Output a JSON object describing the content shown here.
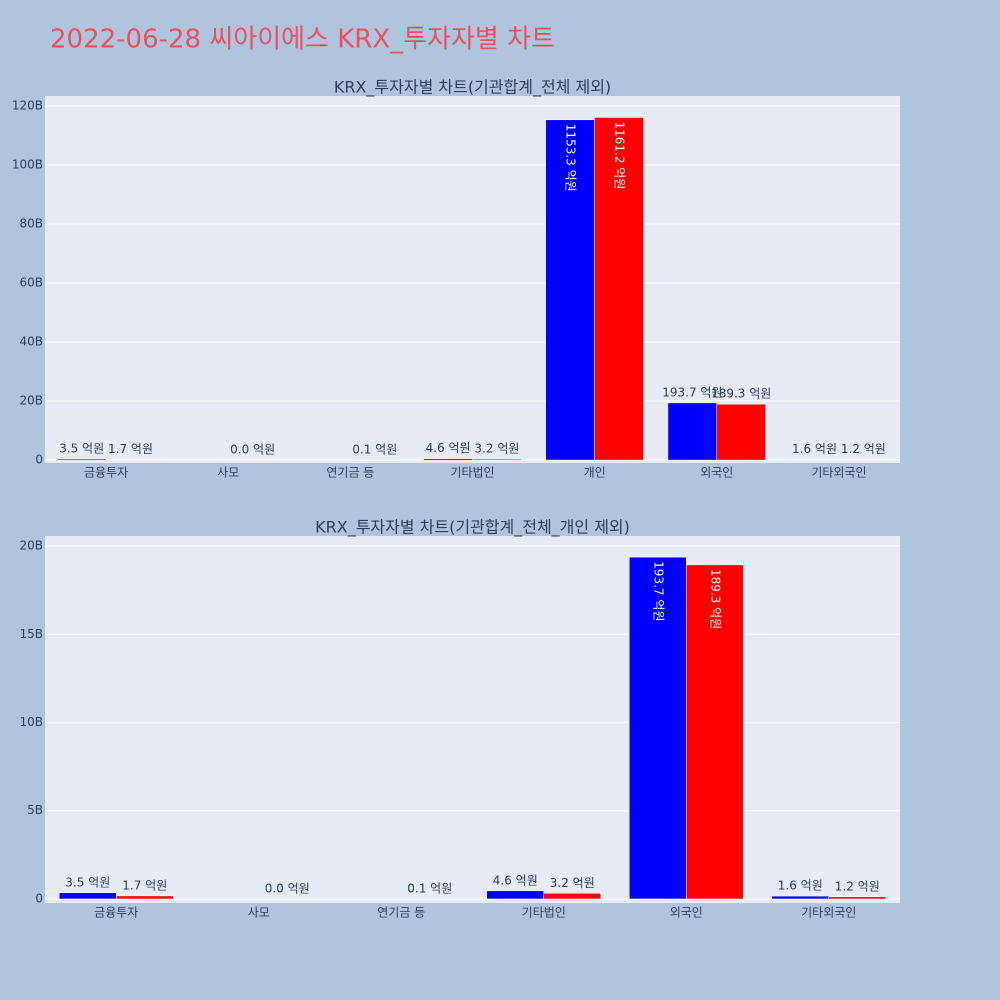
{
  "title": "2022-06-28 씨아이에스 KRX_투자자별 차트",
  "chart_data": [
    {
      "type": "bar",
      "title": "KRX_투자자별 차트(기관합계_전체 제외)",
      "categories": [
        "금융투자",
        "사모",
        "연기금 등",
        "기타법인",
        "개인",
        "외국인",
        "기타외국인"
      ],
      "series": [
        {
          "color": "#0000ff",
          "values": [
            350000000,
            null,
            null,
            460000000,
            115330000000,
            19370000000,
            160000000
          ],
          "value_labels": [
            "3.5 억원",
            null,
            null,
            "4.6 억원",
            "1153.3 억원",
            "193.7 억원",
            "1.6 억원"
          ]
        },
        {
          "color": "#ff0000",
          "values": [
            170000000,
            0,
            10000000,
            320000000,
            116120000000,
            18930000000,
            120000000
          ],
          "value_labels": [
            "1.7 억원",
            "0.0 억원",
            "0.1 억원",
            "3.2 억원",
            "1161.2 억원",
            "189.3 억원",
            "1.2 억원"
          ]
        }
      ],
      "ylim": [
        -1000000000,
        123400000000
      ],
      "yticks": [
        0,
        {
          "value": 20000000000,
          "label": "20B"
        },
        {
          "value": 40000000000,
          "label": "40B"
        },
        {
          "value": 60000000000,
          "label": "60B"
        },
        {
          "value": 80000000000,
          "label": "80B"
        },
        {
          "value": 100000000000,
          "label": "100B"
        },
        {
          "value": 120000000000,
          "label": "120B"
        }
      ],
      "grid": true
    },
    {
      "type": "bar",
      "title": "KRX_투자자별 차트(기관합계_전체_개인 제외)",
      "categories": [
        "금융투자",
        "사모",
        "연기금 등",
        "기타법인",
        "외국인",
        "기타외국인"
      ],
      "series": [
        {
          "color": "#0000ff",
          "values": [
            350000000,
            null,
            null,
            460000000,
            19370000000,
            160000000
          ],
          "value_labels": [
            "3.5 억원",
            null,
            null,
            "4.6 억원",
            "193.7 억원",
            "1.6 억원"
          ]
        },
        {
          "color": "#ff0000",
          "values": [
            170000000,
            0,
            10000000,
            320000000,
            18930000000,
            120000000
          ],
          "value_labels": [
            "1.7 억원",
            "0.0 억원",
            "0.1 억원",
            "3.2 억원",
            "189.3 억원",
            "1.2 억원"
          ]
        }
      ],
      "ylim": [
        -230000000,
        20570000000
      ],
      "yticks": [
        0,
        {
          "value": 5000000000,
          "label": "5B"
        },
        {
          "value": 10000000000,
          "label": "10B"
        },
        {
          "value": 15000000000,
          "label": "15B"
        },
        {
          "value": 20000000000,
          "label": "20B"
        }
      ],
      "grid": true
    }
  ]
}
